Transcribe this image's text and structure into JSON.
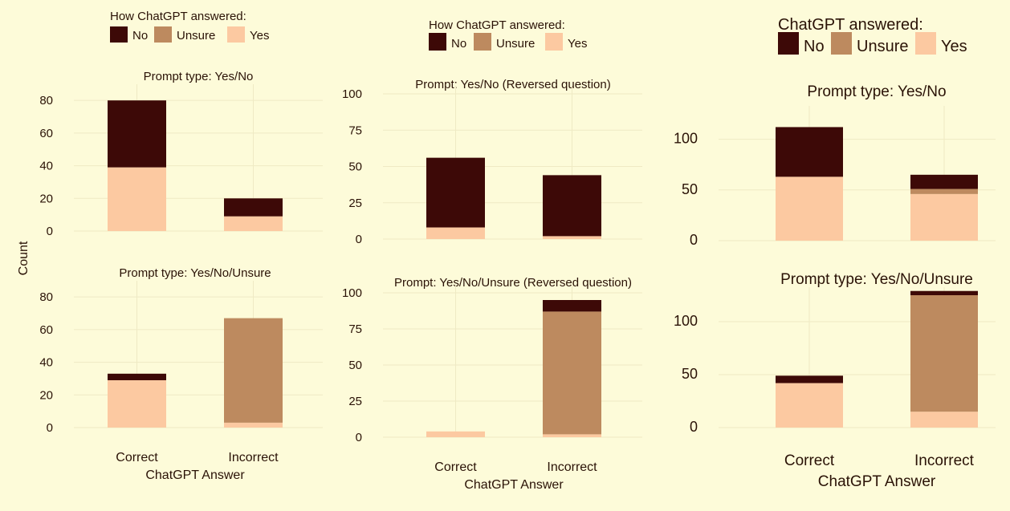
{
  "colors": {
    "No": "#3d0907",
    "Unsure": "#bd8a5f",
    "Yes": "#fcc9a1",
    "grid": "#efeac4",
    "background": "#fdfbd9"
  },
  "shared_ylabel": "Count",
  "chart_data": [
    {
      "type": "bar",
      "stacked": true,
      "legend_title": "How ChatGPT answered:",
      "legend_position": "top",
      "xlabel": "ChatGPT Answer",
      "ylabel": "Count",
      "grid": true,
      "series_names": [
        "No",
        "Unsure",
        "Yes"
      ],
      "facets": [
        {
          "title": "Prompt type: Yes/No",
          "categories": [
            "Correct",
            "Incorrect"
          ],
          "ylim": [
            0,
            85
          ],
          "yticks": [
            0,
            20,
            40,
            60,
            80
          ],
          "series": [
            {
              "name": "Yes",
              "values": [
                39,
                9
              ]
            },
            {
              "name": "Unsure",
              "values": [
                0,
                0
              ]
            },
            {
              "name": "No",
              "values": [
                41,
                11
              ]
            }
          ]
        },
        {
          "title": "Prompt type: Yes/No/Unsure",
          "categories": [
            "Correct",
            "Incorrect"
          ],
          "ylim": [
            0,
            85
          ],
          "yticks": [
            0,
            20,
            40,
            60,
            80
          ],
          "series": [
            {
              "name": "Yes",
              "values": [
                29,
                3
              ]
            },
            {
              "name": "Unsure",
              "values": [
                0,
                64
              ]
            },
            {
              "name": "No",
              "values": [
                4,
                0
              ]
            }
          ]
        }
      ]
    },
    {
      "type": "bar",
      "stacked": true,
      "legend_title": "How ChatGPT answered:",
      "legend_position": "top",
      "xlabel": "ChatGPT Answer",
      "ylabel": "",
      "grid": true,
      "series_names": [
        "No",
        "Unsure",
        "Yes"
      ],
      "facets": [
        {
          "title": "Prompt: Yes/No (Reversed question)",
          "categories": [
            "Correct",
            "Incorrect"
          ],
          "ylim": [
            0,
            100
          ],
          "yticks": [
            0,
            25,
            50,
            75,
            100
          ],
          "series": [
            {
              "name": "Yes",
              "values": [
                8,
                2
              ]
            },
            {
              "name": "Unsure",
              "values": [
                0,
                0
              ]
            },
            {
              "name": "No",
              "values": [
                48,
                42
              ]
            }
          ]
        },
        {
          "title": "Prompt: Yes/No/Unsure (Reversed question)",
          "categories": [
            "Correct",
            "Incorrect"
          ],
          "ylim": [
            0,
            100
          ],
          "yticks": [
            0,
            25,
            50,
            75,
            100
          ],
          "series": [
            {
              "name": "Yes",
              "values": [
                4,
                2
              ]
            },
            {
              "name": "Unsure",
              "values": [
                0,
                85
              ]
            },
            {
              "name": "No",
              "values": [
                0,
                8
              ]
            }
          ]
        }
      ]
    },
    {
      "type": "bar",
      "stacked": true,
      "legend_title": "ChatGPT answered:",
      "legend_position": "top",
      "xlabel": "ChatGPT Answer",
      "ylabel": "",
      "grid": true,
      "series_names": [
        "No",
        "Unsure",
        "Yes"
      ],
      "facets": [
        {
          "title": "Prompt type: Yes/No",
          "categories": [
            "Correct",
            "Incorrect"
          ],
          "ylim": [
            0,
            125
          ],
          "yticks": [
            0,
            50,
            100
          ],
          "series": [
            {
              "name": "Yes",
              "values": [
                63,
                46
              ]
            },
            {
              "name": "Unsure",
              "values": [
                0,
                5
              ]
            },
            {
              "name": "No",
              "values": [
                49,
                14
              ]
            }
          ]
        },
        {
          "title": "Prompt type: Yes/No/Unsure",
          "categories": [
            "Correct",
            "Incorrect"
          ],
          "ylim": [
            0,
            125
          ],
          "yticks": [
            0,
            50,
            100
          ],
          "series": [
            {
              "name": "Yes",
              "values": [
                42,
                15
              ]
            },
            {
              "name": "Unsure",
              "values": [
                0,
                110
              ]
            },
            {
              "name": "No",
              "values": [
                7,
                4
              ]
            }
          ]
        }
      ]
    }
  ]
}
